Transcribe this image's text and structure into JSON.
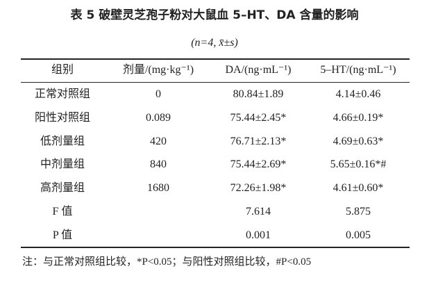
{
  "header": {
    "title": "表 5  破壁灵芝孢子粉对大鼠血 5–HT、DA 含量的影响",
    "subtitle": "(n=4, x̄±s)"
  },
  "table": {
    "columns": [
      "组别",
      "剂量/(mg·kg⁻¹)",
      "DA/(ng·mL⁻¹)",
      "5–HT/(ng·mL⁻¹)"
    ],
    "rows": [
      [
        "正常对照组",
        "0",
        "80.84±1.89",
        "4.14±0.46"
      ],
      [
        "阳性对照组",
        "0.089",
        "75.44±2.45*",
        "4.66±0.19*"
      ],
      [
        "低剂量组",
        "420",
        "76.71±2.13*",
        "4.69±0.63*"
      ],
      [
        "中剂量组",
        "840",
        "75.44±2.69*",
        "5.65±0.16*#"
      ],
      [
        "高剂量组",
        "1680",
        "72.26±1.98*",
        "4.61±0.60*"
      ]
    ],
    "stats": [
      {
        "label": "F 值",
        "values": [
          "7.614",
          "5.875"
        ]
      },
      {
        "label": "P 值",
        "values": [
          "0.001",
          "0.005"
        ]
      }
    ]
  },
  "footnote": "注：与正常对照组比较，*P<0.05；与阳性对照组比较，#P<0.05"
}
